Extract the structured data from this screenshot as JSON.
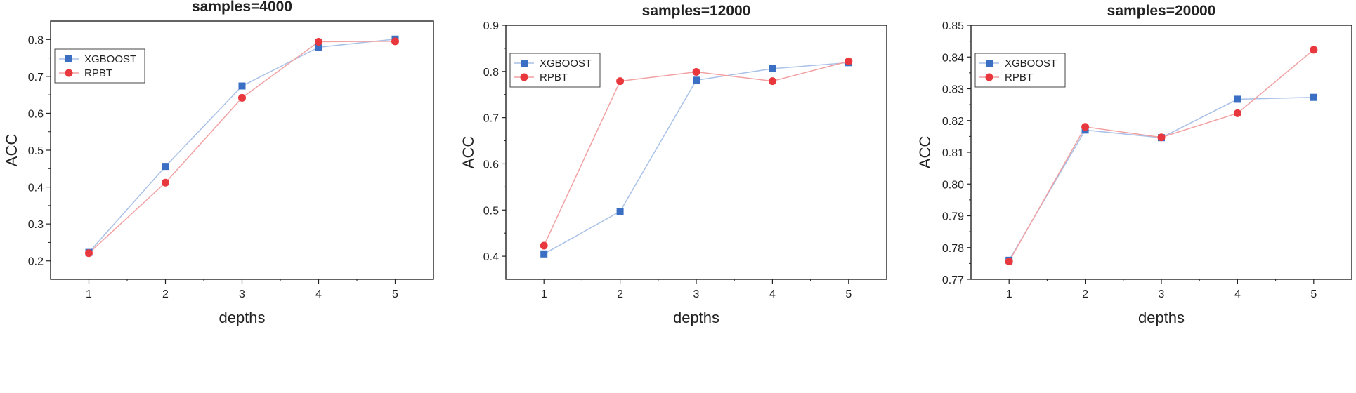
{
  "chart_data": [
    {
      "type": "line",
      "title": "samples=4000",
      "xlabel": "depths",
      "ylabel": "ACC",
      "x": [
        1,
        2,
        3,
        4,
        5
      ],
      "xticks": [
        "1",
        "2",
        "3",
        "4",
        "5"
      ],
      "xlim": [
        0.5,
        5.5
      ],
      "ylim": [
        0.15,
        0.85
      ],
      "yticks": [
        "0.2",
        "0.3",
        "0.4",
        "0.5",
        "0.6",
        "0.7",
        "0.8"
      ],
      "grid": false,
      "legend": "top-left",
      "series": [
        {
          "name": "XGBOOST",
          "color": "#3a6fc4",
          "line_color": "#a9c1e8",
          "marker": "square",
          "values": [
            0.223,
            0.456,
            0.674,
            0.779,
            0.801
          ]
        },
        {
          "name": "RPBT",
          "color": "#e8383d",
          "line_color": "#f2a1a3",
          "marker": "circle",
          "values": [
            0.221,
            0.412,
            0.642,
            0.794,
            0.795
          ]
        }
      ]
    },
    {
      "type": "line",
      "title": "samples=12000",
      "xlabel": "depths",
      "ylabel": "ACC",
      "x": [
        1,
        2,
        3,
        4,
        5
      ],
      "xticks": [
        "1",
        "2",
        "3",
        "4",
        "5"
      ],
      "xlim": [
        0.5,
        5.5
      ],
      "ylim": [
        0.35,
        0.9
      ],
      "yticks": [
        "0.4",
        "0.5",
        "0.6",
        "0.7",
        "0.8",
        "0.9"
      ],
      "grid": false,
      "legend": "top-left",
      "series": [
        {
          "name": "XGBOOST",
          "color": "#3a6fc4",
          "line_color": "#a9c1e8",
          "marker": "square",
          "values": [
            0.405,
            0.497,
            0.781,
            0.806,
            0.819
          ]
        },
        {
          "name": "RPBT",
          "color": "#e8383d",
          "line_color": "#f2a1a3",
          "marker": "circle",
          "values": [
            0.423,
            0.779,
            0.799,
            0.779,
            0.822
          ]
        }
      ]
    },
    {
      "type": "line",
      "title": "samples=20000",
      "xlabel": "depths",
      "ylabel": "ACC",
      "x": [
        1,
        2,
        3,
        4,
        5
      ],
      "xticks": [
        "1",
        "2",
        "3",
        "4",
        "5"
      ],
      "xlim": [
        0.5,
        5.5
      ],
      "ylim": [
        0.77,
        0.85
      ],
      "yticks": [
        "0.77",
        "0.78",
        "0.79",
        "0.80",
        "0.81",
        "0.82",
        "0.83",
        "0.84",
        "0.85"
      ],
      "grid": false,
      "legend": "top-left",
      "series": [
        {
          "name": "XGBOOST",
          "color": "#3a6fc4",
          "line_color": "#a9c1e8",
          "marker": "square",
          "values": [
            0.776,
            0.817,
            0.8146,
            0.8267,
            0.8273
          ]
        },
        {
          "name": "RPBT",
          "color": "#e8383d",
          "line_color": "#f2a1a3",
          "marker": "circle",
          "values": [
            0.7756,
            0.818,
            0.8147,
            0.8223,
            0.8423
          ]
        }
      ]
    }
  ]
}
